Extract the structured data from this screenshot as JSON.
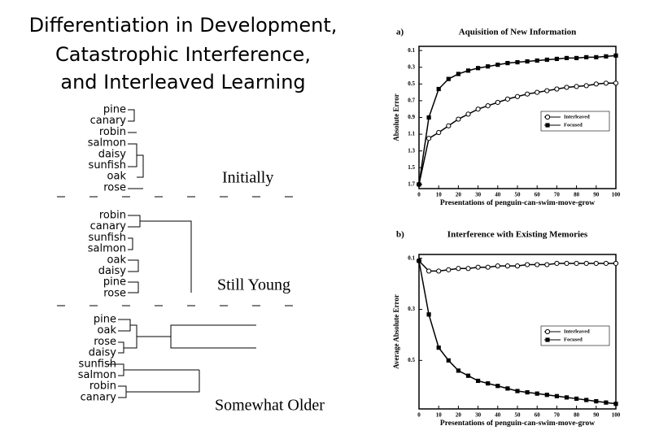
{
  "title": [
    "Differentiation in Development,",
    "Catastrophic Interference,",
    "and Interleaved Learning"
  ],
  "dendrograms": [
    {
      "leaves": [
        "pine",
        "canary",
        "robin",
        "salmon",
        "daisy",
        "sunfish",
        "oak",
        "rose"
      ],
      "caption": "Initially"
    },
    {
      "leaves": [
        "robin",
        "canary",
        "sunfish",
        "salmon",
        "oak",
        "daisy",
        "pine",
        "rose"
      ],
      "caption": "Still Young"
    },
    {
      "leaves": [
        "pine",
        "oak",
        "rose",
        "daisy",
        "sunfish",
        "salmon",
        "robin",
        "canary"
      ],
      "caption": "Somewhat Older"
    }
  ],
  "chart_data": [
    {
      "type": "line",
      "panel": "a)",
      "title": "Aquisition of New Information",
      "x_label": "Presentations of penguin-can-swim-move-grow",
      "y_label": "Absolute Error",
      "x": [
        0,
        5,
        10,
        15,
        20,
        25,
        30,
        35,
        40,
        45,
        50,
        55,
        60,
        65,
        70,
        75,
        80,
        85,
        90,
        95,
        100
      ],
      "xlim": [
        0,
        100
      ],
      "xticks": [
        0,
        10,
        20,
        30,
        40,
        50,
        60,
        70,
        80,
        90,
        100
      ],
      "ylim": [
        1.75,
        0.05
      ],
      "yticks": [
        0.1,
        0.3,
        0.5,
        0.7,
        0.9,
        1.1,
        1.3,
        1.5,
        1.7
      ],
      "legend": "right",
      "series": [
        {
          "name": "Interleaved",
          "color": "#000000",
          "marker": "circle",
          "values": [
            1.7,
            1.15,
            1.08,
            1.0,
            0.92,
            0.86,
            0.8,
            0.76,
            0.72,
            0.68,
            0.65,
            0.62,
            0.6,
            0.58,
            0.56,
            0.54,
            0.53,
            0.52,
            0.5,
            0.49,
            0.49
          ]
        },
        {
          "name": "Focused",
          "color": "#000000",
          "marker": "square",
          "values": [
            1.7,
            0.9,
            0.56,
            0.44,
            0.38,
            0.34,
            0.31,
            0.29,
            0.27,
            0.25,
            0.24,
            0.23,
            0.22,
            0.21,
            0.2,
            0.19,
            0.19,
            0.18,
            0.18,
            0.17,
            0.16
          ]
        }
      ]
    },
    {
      "type": "line",
      "panel": "b)",
      "title": "Interference with Existing Memories",
      "x_label": "Presentations of penguin-can-swim-move-grow",
      "y_label": "Average Absolute Error",
      "x": [
        0,
        5,
        10,
        15,
        20,
        25,
        30,
        35,
        40,
        45,
        50,
        55,
        60,
        65,
        70,
        75,
        80,
        85,
        90,
        95,
        100
      ],
      "xlim": [
        0,
        100
      ],
      "xticks": [
        0,
        10,
        20,
        30,
        40,
        50,
        60,
        70,
        80,
        90,
        100
      ],
      "ylim": [
        0.69,
        0.085
      ],
      "yticks": [
        0.1,
        0.3,
        0.5
      ],
      "legend": "right",
      "series": [
        {
          "name": "Interleaved",
          "color": "#000000",
          "marker": "circle",
          "values": [
            0.11,
            0.15,
            0.15,
            0.145,
            0.14,
            0.14,
            0.135,
            0.135,
            0.13,
            0.13,
            0.13,
            0.125,
            0.125,
            0.125,
            0.12,
            0.12,
            0.12,
            0.12,
            0.12,
            0.12,
            0.12
          ]
        },
        {
          "name": "Focused",
          "color": "#000000",
          "marker": "square",
          "values": [
            0.11,
            0.32,
            0.45,
            0.5,
            0.54,
            0.56,
            0.58,
            0.59,
            0.6,
            0.61,
            0.62,
            0.625,
            0.63,
            0.635,
            0.64,
            0.645,
            0.65,
            0.655,
            0.66,
            0.665,
            0.67
          ]
        }
      ]
    }
  ]
}
